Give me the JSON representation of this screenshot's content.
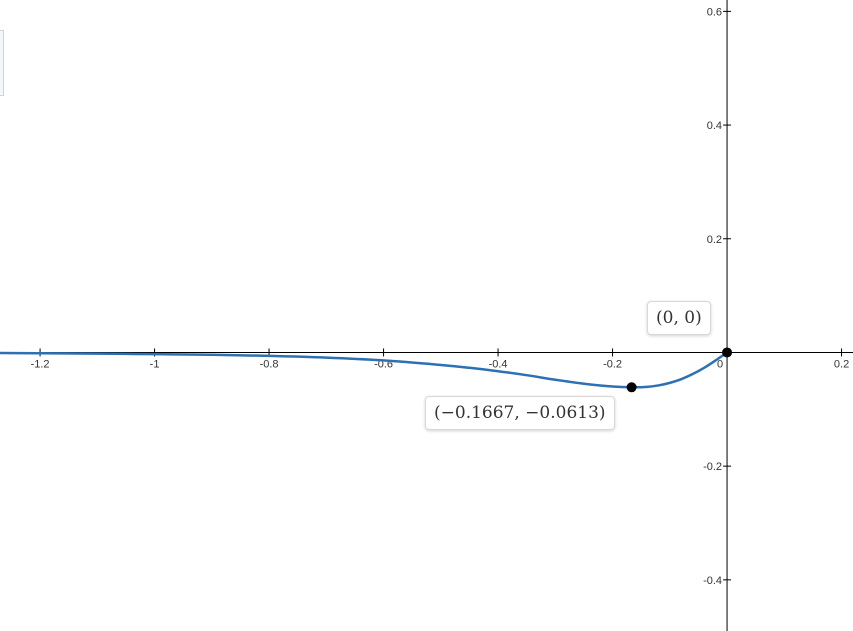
{
  "chart_data": {
    "type": "line",
    "title": "",
    "xlabel": "",
    "ylabel": "",
    "xlim": [
      -1.27,
      0.22
    ],
    "ylim": [
      -0.49,
      0.62
    ],
    "x_ticks": [
      -1.2,
      -1,
      -0.8,
      -0.6,
      -0.4,
      -0.2,
      0,
      0.2
    ],
    "x_tick_labels": [
      "-1.2",
      "-1",
      "-0.8",
      "-0.6",
      "-0.4",
      "-0.2",
      "0",
      "0.2"
    ],
    "y_ticks": [
      -0.4,
      -0.2,
      0.2,
      0.4,
      0.6
    ],
    "y_tick_labels": [
      "-0.4",
      "-0.2",
      "0.2",
      "0.4",
      "0.6"
    ],
    "grid": false,
    "series": [
      {
        "color": "#2d70b3",
        "x": [
          -1.27,
          -1.2,
          -1.1,
          -1.0,
          -0.9,
          -0.8,
          -0.7,
          -0.6,
          -0.5,
          -0.45,
          -0.4,
          -0.35,
          -0.3,
          -0.25,
          -0.2,
          -0.1667,
          -0.14,
          -0.12,
          -0.1,
          -0.08,
          -0.06,
          -0.04,
          -0.02,
          0
        ],
        "y": [
          -0.001,
          -0.0015,
          -0.002,
          -0.003,
          -0.004,
          -0.006,
          -0.009,
          -0.014,
          -0.022,
          -0.027,
          -0.033,
          -0.04,
          -0.048,
          -0.055,
          -0.06,
          -0.0613,
          -0.0605,
          -0.058,
          -0.0535,
          -0.047,
          -0.038,
          -0.027,
          -0.014,
          0
        ]
      }
    ],
    "points": [
      {
        "x": 0,
        "y": 0,
        "label": "(0, 0)"
      },
      {
        "x": -0.1667,
        "y": -0.0613,
        "label": "(−0.1667, −0.0613)"
      }
    ],
    "colors": {
      "curve": "#2d70b3",
      "point": "#000000",
      "axis": "#000000"
    }
  }
}
